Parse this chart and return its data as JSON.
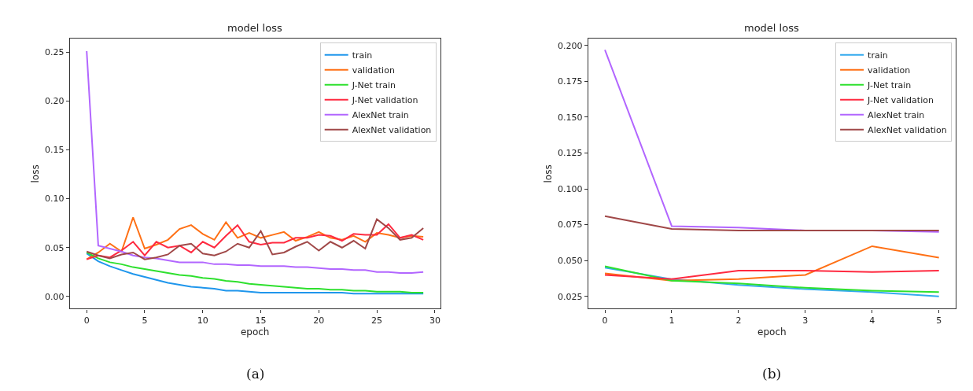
{
  "chart_data": [
    {
      "type": "line",
      "title": "model loss",
      "xlabel": "epoch",
      "ylabel": "loss",
      "annotations": [
        "(a)"
      ],
      "legend": "top right",
      "x": [
        0,
        1,
        2,
        3,
        4,
        5,
        6,
        7,
        8,
        9,
        10,
        11,
        12,
        13,
        14,
        15,
        16,
        17,
        18,
        19,
        20,
        21,
        22,
        23,
        24,
        25,
        26,
        27,
        28,
        29
      ],
      "xlim": [
        -1.45,
        30.45
      ],
      "xticks": [
        0,
        5,
        10,
        15,
        20,
        25,
        30
      ],
      "ylim": [
        -0.0125,
        0.2635
      ],
      "yticks": [
        {
          "value": 0,
          "label": "0.00"
        },
        {
          "value": 0.05,
          "label": "0.05"
        },
        {
          "value": 0.1,
          "label": "0.10"
        },
        {
          "value": 0.15,
          "label": "0.15"
        },
        {
          "value": 0.2,
          "label": "0.20"
        },
        {
          "value": 0.25,
          "label": "0.25"
        }
      ],
      "series": [
        {
          "name": "train",
          "color": "#1f96ec",
          "values": [
            0.044,
            0.036,
            0.031,
            0.027,
            0.023,
            0.02,
            0.017,
            0.014,
            0.012,
            0.01,
            0.009,
            0.008,
            0.006,
            0.006,
            0.005,
            0.004,
            0.004,
            0.004,
            0.004,
            0.004,
            0.004,
            0.004,
            0.004,
            0.003,
            0.003,
            0.003,
            0.003,
            0.003,
            0.003,
            0.003
          ]
        },
        {
          "name": "validation",
          "color": "#ff7015",
          "values": [
            0.038,
            0.045,
            0.054,
            0.046,
            0.081,
            0.049,
            0.053,
            0.058,
            0.069,
            0.073,
            0.064,
            0.058,
            0.076,
            0.06,
            0.065,
            0.06,
            0.063,
            0.066,
            0.057,
            0.061,
            0.066,
            0.06,
            0.058,
            0.062,
            0.056,
            0.065,
            0.063,
            0.06,
            0.062,
            0.061
          ]
        },
        {
          "name": "J-Net train",
          "color": "#2ee02e",
          "values": [
            0.045,
            0.039,
            0.035,
            0.033,
            0.03,
            0.028,
            0.026,
            0.024,
            0.022,
            0.021,
            0.019,
            0.018,
            0.016,
            0.015,
            0.013,
            0.012,
            0.011,
            0.01,
            0.009,
            0.008,
            0.008,
            0.007,
            0.007,
            0.006,
            0.006,
            0.005,
            0.005,
            0.005,
            0.004,
            0.004
          ]
        },
        {
          "name": "J-Net validation",
          "color": "#ff2a40",
          "values": [
            0.038,
            0.042,
            0.04,
            0.047,
            0.056,
            0.042,
            0.056,
            0.05,
            0.052,
            0.045,
            0.056,
            0.05,
            0.062,
            0.073,
            0.056,
            0.053,
            0.055,
            0.055,
            0.06,
            0.06,
            0.063,
            0.062,
            0.057,
            0.064,
            0.063,
            0.063,
            0.074,
            0.06,
            0.063,
            0.058
          ]
        },
        {
          "name": "AlexNet train",
          "color": "#b266ff",
          "values": [
            0.251,
            0.052,
            0.049,
            0.046,
            0.042,
            0.04,
            0.039,
            0.037,
            0.035,
            0.035,
            0.035,
            0.033,
            0.033,
            0.032,
            0.032,
            0.031,
            0.031,
            0.031,
            0.03,
            0.03,
            0.029,
            0.028,
            0.028,
            0.027,
            0.027,
            0.025,
            0.025,
            0.024,
            0.024,
            0.025
          ]
        },
        {
          "name": "AlexNet validation",
          "color": "#a04848",
          "values": [
            0.046,
            0.042,
            0.039,
            0.043,
            0.045,
            0.038,
            0.04,
            0.043,
            0.052,
            0.054,
            0.044,
            0.042,
            0.046,
            0.054,
            0.05,
            0.067,
            0.043,
            0.045,
            0.051,
            0.056,
            0.047,
            0.056,
            0.05,
            0.057,
            0.049,
            0.079,
            0.07,
            0.058,
            0.06,
            0.07
          ]
        }
      ]
    },
    {
      "type": "line",
      "title": "model loss",
      "xlabel": "epoch",
      "ylabel": "loss",
      "annotations": [
        "(b)"
      ],
      "legend": "top right",
      "x": [
        0,
        1,
        2,
        3,
        4,
        5
      ],
      "xlim": [
        -0.25,
        5.25
      ],
      "xticks": [
        0,
        1,
        2,
        3,
        4,
        5
      ],
      "ylim": [
        0.0164,
        0.2046
      ],
      "yticks": [
        0.025,
        {
          "value": 0.05,
          "label": "0.050"
        },
        0.075,
        {
          "value": 0.1,
          "label": "0.100"
        },
        0.125,
        {
          "value": 0.15,
          "label": "0.150"
        },
        0.175,
        {
          "value": 0.2,
          "label": "0.200"
        }
      ],
      "series": [
        {
          "name": "train",
          "color": "#33aaee",
          "values": [
            0.045,
            0.037,
            0.033,
            0.03,
            0.028,
            0.025
          ]
        },
        {
          "name": "validation",
          "color": "#ff7015",
          "values": [
            0.041,
            0.036,
            0.037,
            0.04,
            0.06,
            0.052
          ]
        },
        {
          "name": "J-Net train",
          "color": "#2ee02e",
          "values": [
            0.046,
            0.036,
            0.034,
            0.031,
            0.029,
            0.028
          ]
        },
        {
          "name": "J-Net validation",
          "color": "#ff2a40",
          "values": [
            0.04,
            0.037,
            0.043,
            0.043,
            0.042,
            0.043
          ]
        },
        {
          "name": "AlexNet train",
          "color": "#b266ff",
          "values": [
            0.197,
            0.074,
            0.073,
            0.071,
            0.071,
            0.07
          ]
        },
        {
          "name": "AlexNet validation",
          "color": "#a04848",
          "values": [
            0.081,
            0.072,
            0.071,
            0.071,
            0.071,
            0.071
          ]
        }
      ]
    }
  ]
}
